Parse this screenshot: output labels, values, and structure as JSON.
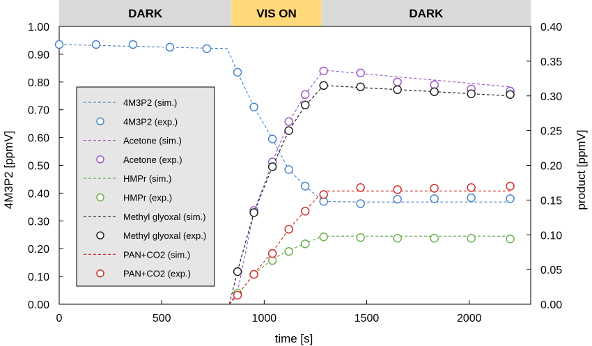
{
  "chart_data": {
    "type": "scatter",
    "phases": [
      {
        "label": "DARK",
        "start": 0,
        "end": 840,
        "color": "#d9d9d9"
      },
      {
        "label": "VIS ON",
        "start": 840,
        "end": 1280,
        "color": "#ffd97a"
      },
      {
        "label": "DARK",
        "start": 1280,
        "end": 2300,
        "color": "#d9d9d9"
      }
    ],
    "xlabel": "time [s]",
    "ylabel": "4M3P2 [ppmV]",
    "y2label": "product [ppmV]",
    "xlim": [
      0,
      2300
    ],
    "ylim": [
      0,
      1.0
    ],
    "y2lim": [
      0,
      0.4
    ],
    "xticks": [
      0,
      500,
      1000,
      1500,
      2000
    ],
    "yticks": [
      "0.00",
      "0.10",
      "0.20",
      "0.30",
      "0.40",
      "0.50",
      "0.60",
      "0.70",
      "0.80",
      "0.90",
      "1.00"
    ],
    "y2ticks": [
      "0.00",
      "0.05",
      "0.10",
      "0.15",
      "0.20",
      "0.25",
      "0.30",
      "0.35",
      "0.40"
    ],
    "grid": false,
    "legend_position": "left",
    "series": [
      {
        "name": "4M3P2 (sim.)",
        "kind": "line",
        "axis": "left",
        "color": "#4a86c8",
        "x": [
          0,
          820,
          870,
          950,
          1040,
          1120,
          1200,
          1290,
          1470,
          1650,
          1830,
          2010,
          2200
        ],
        "y": [
          0.935,
          0.92,
          0.835,
          0.71,
          0.595,
          0.485,
          0.425,
          0.37,
          0.368,
          0.368,
          0.368,
          0.368,
          0.368
        ]
      },
      {
        "name": "4M3P2 (exp.)",
        "kind": "points",
        "axis": "left",
        "color": "#4a86c8",
        "x": [
          0,
          180,
          360,
          540,
          720,
          870,
          950,
          1040,
          1120,
          1200,
          1290,
          1470,
          1650,
          1830,
          2010,
          2200
        ],
        "y": [
          0.935,
          0.935,
          0.935,
          0.925,
          0.92,
          0.835,
          0.71,
          0.595,
          0.485,
          0.425,
          0.37,
          0.362,
          0.378,
          0.38,
          0.383,
          0.38
        ]
      },
      {
        "name": "Acetone (sim.)",
        "kind": "line",
        "axis": "right",
        "color": "#9b59c6",
        "x": [
          830,
          870,
          950,
          1040,
          1120,
          1200,
          1290,
          2200
        ],
        "y": [
          0.0,
          0.018,
          0.133,
          0.205,
          0.262,
          0.302,
          0.337,
          0.313
        ]
      },
      {
        "name": "Acetone (exp.)",
        "kind": "points",
        "axis": "right",
        "color": "#9b59c6",
        "x": [
          950,
          1040,
          1120,
          1200,
          1290,
          1470,
          1650,
          1830,
          2010,
          2200
        ],
        "y": [
          0.135,
          0.205,
          0.263,
          0.302,
          0.336,
          0.333,
          0.32,
          0.316,
          0.31,
          0.307
        ]
      },
      {
        "name": "HMPr (sim.)",
        "kind": "line",
        "axis": "right",
        "color": "#6ab04c",
        "x": [
          830,
          870,
          950,
          1040,
          1120,
          1200,
          1290,
          2200
        ],
        "y": [
          0.0,
          0.014,
          0.043,
          0.065,
          0.077,
          0.088,
          0.098,
          0.098
        ]
      },
      {
        "name": "HMPr (exp.)",
        "kind": "points",
        "axis": "right",
        "color": "#6ab04c",
        "x": [
          870,
          950,
          1040,
          1120,
          1200,
          1290,
          1470,
          1650,
          1830,
          2010,
          2200
        ],
        "y": [
          0.016,
          0.043,
          0.063,
          0.076,
          0.087,
          0.097,
          0.096,
          0.095,
          0.095,
          0.095,
          0.094
        ]
      },
      {
        "name": "Methyl glyoxal (sim.)",
        "kind": "line",
        "axis": "right",
        "color": "#222222",
        "x": [
          830,
          870,
          950,
          1040,
          1120,
          1200,
          1290,
          2200
        ],
        "y": [
          0.0,
          0.048,
          0.132,
          0.198,
          0.25,
          0.286,
          0.315,
          0.3
        ]
      },
      {
        "name": "Methyl glyoxal (exp.)",
        "kind": "points",
        "axis": "right",
        "color": "#222222",
        "x": [
          870,
          950,
          1040,
          1120,
          1200,
          1290,
          1470,
          1650,
          1830,
          2010,
          2200
        ],
        "y": [
          0.047,
          0.132,
          0.198,
          0.25,
          0.287,
          0.315,
          0.313,
          0.309,
          0.306,
          0.303,
          0.302
        ]
      },
      {
        "name": "PAN+CO2 (sim.)",
        "kind": "line",
        "axis": "right",
        "color": "#d0302a",
        "x": [
          830,
          870,
          950,
          1040,
          1120,
          1200,
          1290,
          2200
        ],
        "y": [
          0.0,
          0.013,
          0.044,
          0.075,
          0.108,
          0.135,
          0.163,
          0.163
        ]
      },
      {
        "name": "PAN+CO2 (exp.)",
        "kind": "points",
        "axis": "right",
        "color": "#d0302a",
        "x": [
          870,
          950,
          1040,
          1120,
          1200,
          1290,
          1470,
          1650,
          1830,
          2010,
          2200
        ],
        "y": [
          0.013,
          0.043,
          0.073,
          0.108,
          0.134,
          0.158,
          0.168,
          0.165,
          0.167,
          0.168,
          0.17
        ]
      }
    ]
  }
}
